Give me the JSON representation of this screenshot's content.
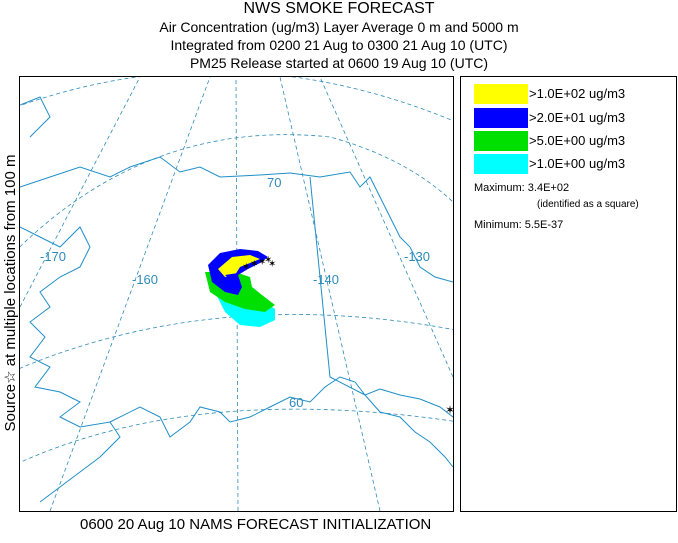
{
  "header": {
    "title": "NWS SMOKE FORECAST",
    "line2": "Air Concentration (ug/m3) Layer Average    0 m and  5000 m",
    "line3": "Integrated from 0200 21 Aug to 0300 21 Aug 10 (UTC)",
    "line4": "PM25 Release started at 0600 19 Aug 10 (UTC)"
  },
  "side_label": "Source☆ at multiple locations  from  100 m",
  "footer": "0600 20 Aug 10 NAMS FORECAST INITIALIZATION",
  "map": {
    "grid_labels": {
      "lon_170": "-170",
      "lon_160": "-160",
      "lon_140": "-140",
      "lon_130": "-130",
      "lat_70": "70",
      "lat_60": "60"
    },
    "colors": {
      "grid": "#2e8bb8",
      "coast": "#1f8fc8"
    }
  },
  "legend": {
    "items": [
      {
        "label": ">1.0E+02 ug/m3",
        "color": "#ffff00"
      },
      {
        "label": ">2.0E+01 ug/m3",
        "color": "#0000ff"
      },
      {
        "label": ">5.0E+00 ug/m3",
        "color": "#00e000"
      },
      {
        "label": ">1.0E+00 ug/m3",
        "color": "#00ffff"
      }
    ],
    "maximum_label": "Maximum: 3.4E+02",
    "maximum_note": "(identified as a square)",
    "minimum_label": "Minimum: 5.5E-37"
  }
}
